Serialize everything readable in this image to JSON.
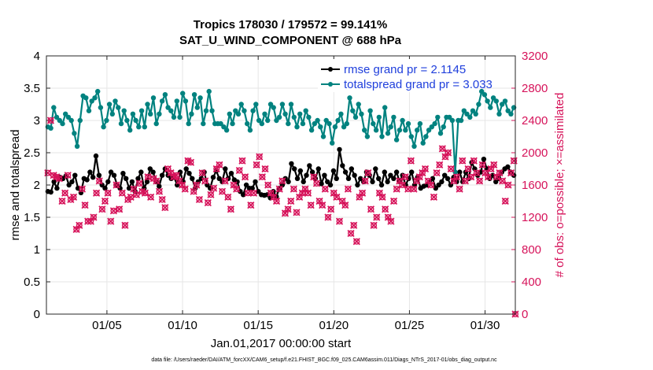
{
  "chart_data": {
    "type": "line",
    "title": "Tropics 178030 / 179572 = 99.141%",
    "subtitle": "SAT_U_WIND_COMPONENT @ 688 hPa",
    "xlabel": "Jan.01,2017 00:00:00 start",
    "ylabel_left": "rmse and totalspread",
    "ylabel_right": "# of obs: o=possible; ×=assimilated",
    "footer": "data file: /Users/raeder/DAI/ATM_forcXX/CAM6_setup/f.e21.FHIST_BGC.f09_025.CAM6assim.011/Diags_NTrS_2017-01/obs_diag_output.nc",
    "xlim": [
      1.0,
      32.0
    ],
    "ylim_left": [
      0,
      4
    ],
    "ylim_right": [
      0,
      3200
    ],
    "x_ticks": [
      5,
      10,
      15,
      20,
      25,
      30
    ],
    "x_tick_labels": [
      "01/05",
      "01/10",
      "01/15",
      "01/20",
      "01/25",
      "01/30"
    ],
    "y_ticks_left": [
      0,
      0.5,
      1,
      1.5,
      2,
      2.5,
      3,
      3.5,
      4
    ],
    "y_tick_labels_left": [
      "0",
      "0.5",
      "1",
      "1.5",
      "2",
      "2.5",
      "3",
      "3.5",
      "4"
    ],
    "y_ticks_right": [
      0,
      400,
      800,
      1200,
      1600,
      2000,
      2400,
      2800,
      3200
    ],
    "y_tick_labels_right": [
      "0",
      "400",
      "800",
      "1200",
      "1600",
      "2000",
      "2400",
      "2800",
      "3200"
    ],
    "grid": true,
    "legend_position": "top-right",
    "series": [
      {
        "name": "rmse grand pr = 2.1145",
        "axis": "left",
        "color": "#000000",
        "values": [
          1.9,
          1.89,
          2.05,
          1.95,
          2.12,
          2.1,
          2.14,
          2.0,
          2.05,
          2.15,
          1.95,
          1.88,
          2.1,
          2.08,
          2.2,
          2.12,
          2.45,
          2.15,
          2.0,
          1.95,
          2.05,
          2.2,
          2.15,
          2.0,
          1.95,
          2.18,
          2.1,
          1.95,
          2.05,
          1.9,
          2.1,
          2.2,
          1.95,
          2.05,
          2.25,
          2.2,
          2.05,
          1.98,
          2.15,
          2.25,
          2.15,
          2.1,
          2.12,
          2.0,
          2.2,
          2.05,
          2.25,
          2.18,
          2.1,
          1.95,
          2.05,
          2.1,
          2.2,
          2.0,
          1.95,
          2.12,
          2.22,
          2.1,
          2.05,
          2.25,
          2.1,
          2.18,
          2.08,
          2.05,
          1.9,
          1.85,
          2.0,
          1.95,
          1.95,
          2.05,
          1.9,
          1.85,
          1.84,
          1.85,
          1.8,
          1.9,
          1.82,
          1.95,
          2.0,
          2.1,
          2.05,
          2.33,
          2.25,
          2.1,
          2.22,
          2.05,
          2.15,
          2.3,
          2.2,
          2.1,
          2.25,
          2.02,
          2.15,
          2.05,
          2.0,
          2.22,
          2.1,
          2.55,
          2.3,
          2.2,
          2.1,
          2.25,
          2.15,
          2.0,
          2.1,
          2.05,
          2.2,
          2.15,
          2.05,
          2.25,
          2.1,
          2.0,
          2.2,
          2.05,
          2.15,
          2.1,
          2.2,
          2.05,
          2.15,
          2.0,
          2.1,
          2.2,
          2.0,
          2.12,
          1.95,
          1.98,
          2.0,
          2.05,
          2.1,
          1.95,
          2.0,
          2.05,
          2.15,
          2.1,
          2.0,
          2.12,
          2.05,
          2.2,
          2.05,
          2.2,
          2.1,
          2.35,
          2.25,
          2.15,
          2.2,
          2.4,
          2.25,
          2.1,
          2.15,
          2.05,
          2.1,
          2.2,
          2.25,
          2.28,
          2.2,
          2.15
        ]
      },
      {
        "name": "totalspread grand pr = 3.033",
        "axis": "left",
        "color": "#00827f",
        "values": [
          2.9,
          2.88,
          3.2,
          3.05,
          3.0,
          2.95,
          3.1,
          3.05,
          3.0,
          2.8,
          2.6,
          3.0,
          3.38,
          3.35,
          3.15,
          3.3,
          3.35,
          3.45,
          3.2,
          2.9,
          3.0,
          3.25,
          3.1,
          3.3,
          3.2,
          2.95,
          3.15,
          3.0,
          2.85,
          3.1,
          3.0,
          2.9,
          3.15,
          2.9,
          3.25,
          3.1,
          3.35,
          2.95,
          3.1,
          3.3,
          3.4,
          3.2,
          3.15,
          3.05,
          3.3,
          3.05,
          3.42,
          3.3,
          2.95,
          3.1,
          3.4,
          3.2,
          3.35,
          2.95,
          3.15,
          3.45,
          3.15,
          2.95,
          2.95,
          2.95,
          2.9,
          2.85,
          3.1,
          2.95,
          3.15,
          3.1,
          3.25,
          3.15,
          2.95,
          2.85,
          3.15,
          3.25,
          3.0,
          2.95,
          3.1,
          3.0,
          3.25,
          3.2,
          3.0,
          3.05,
          3.25,
          3.1,
          2.95,
          3.25,
          3.05,
          2.9,
          3.1,
          2.95,
          3.15,
          3.05,
          2.85,
          2.95,
          3.0,
          2.9,
          2.75,
          3.0,
          2.95,
          2.65,
          2.9,
          3.0,
          3.1,
          2.9,
          2.95,
          3.35,
          3.15,
          3.05,
          3.25,
          3.1,
          2.85,
          2.75,
          3.15,
          2.95,
          2.85,
          3.05,
          2.75,
          3.2,
          2.8,
          2.9,
          3.05,
          2.7,
          2.85,
          3.0,
          2.85,
          2.95,
          2.75,
          2.6,
          2.85,
          2.95,
          2.65,
          2.75,
          2.85,
          2.9,
          2.95,
          3.05,
          2.8,
          2.9,
          3.05,
          3.05,
          3.0,
          2.2,
          3.0,
          3.0,
          3.15,
          3.1,
          3.05,
          3.15,
          3.1,
          3.25,
          3.45,
          3.4,
          3.3,
          3.2,
          3.35,
          3.3,
          3.1,
          3.25,
          3.3,
          3.15,
          3.1,
          3.2
        ]
      },
      {
        "name": "# of obs possible",
        "axis": "right",
        "marker": "o",
        "color": "#d6135a",
        "values": [
          1750,
          2400,
          1720,
          1700,
          1680,
          1400,
          1500,
          1720,
          1420,
          1450,
          1050,
          1100,
          1550,
          1350,
          1150,
          1150,
          1200,
          1500,
          1650,
          1300,
          1400,
          1500,
          1150,
          1280,
          1600,
          1300,
          1500,
          1100,
          1420,
          1450,
          1550,
          1480,
          1620,
          1520,
          1500,
          1700,
          1450,
          1680,
          1650,
          1520,
          1420,
          1320,
          1800,
          1750,
          1700,
          1720,
          1650,
          1600,
          1550,
          1900,
          1880,
          1520,
          1600,
          1420,
          1750,
          1650,
          1380,
          1480,
          1560,
          1800,
          1850,
          1520,
          1650,
          1450,
          1300,
          1600,
          1550,
          1780,
          1900,
          1700,
          1500,
          1350,
          1500,
          1850,
          1950,
          1700,
          1800,
          1600,
          1500,
          1450,
          1400,
          1550,
          1650,
          1250,
          1300,
          1400,
          1550,
          1260,
          1450,
          1500,
          1550,
          1500,
          1350,
          1700,
          1620,
          1400,
          1350,
          1550,
          1200,
          1300,
          1500,
          1450,
          1150,
          1400,
          1350,
          1550,
          1000,
          1100,
          900,
          1450,
          1500,
          1650,
          1750,
          1300,
          1100,
          1200,
          1500,
          1450,
          1300,
          1200,
          1150,
          1400,
          1550,
          1650,
          1600,
          1700,
          1550,
          1900,
          1550,
          1650,
          1700,
          1750,
          1800,
          1650,
          1600,
          1450,
          1750,
          1850,
          2050,
          1950,
          2000,
          1800,
          1650,
          1700,
          1550,
          1900,
          1650,
          1800,
          1700,
          1900,
          1750,
          1650,
          1850,
          1750,
          1700,
          1800,
          1850,
          1700,
          1750,
          1650,
          1400,
          1600,
          1750,
          1900
        ]
      }
    ]
  }
}
